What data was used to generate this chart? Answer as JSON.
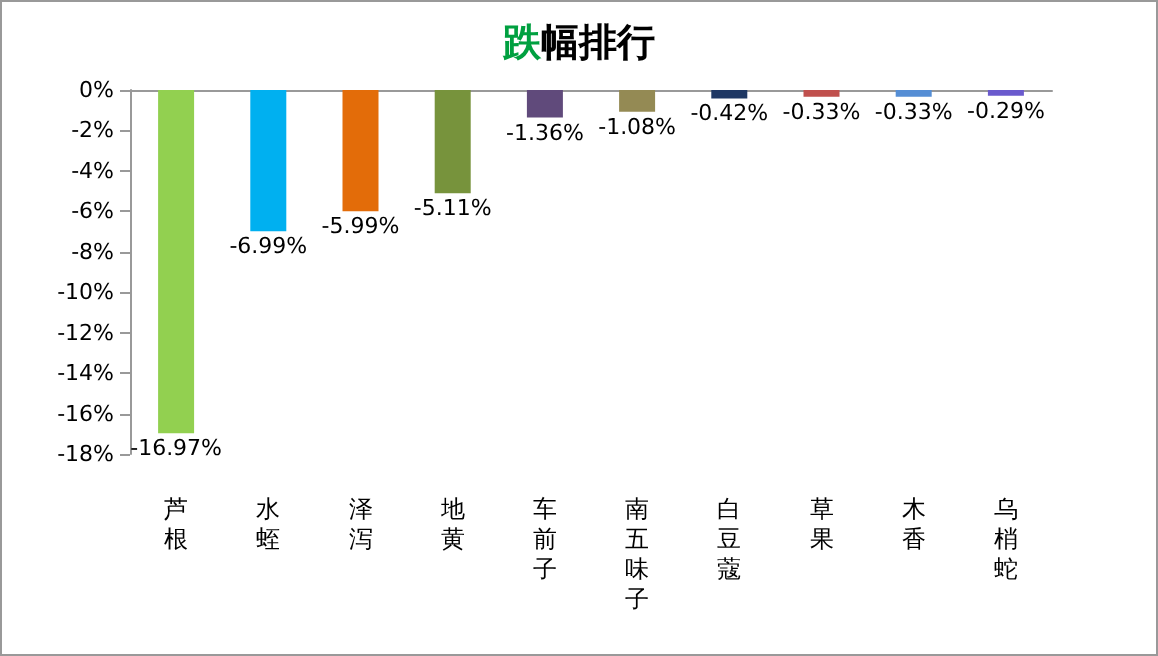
{
  "chart_data": {
    "type": "bar",
    "title": "跌幅排行",
    "categories": [
      "芦根",
      "水蛭",
      "泽泻",
      "地黄",
      "车前子",
      "南五味子",
      "白豆蔻",
      "草果",
      "木香",
      "乌梢蛇"
    ],
    "values": [
      -16.97,
      -6.99,
      -5.99,
      -5.11,
      -1.36,
      -1.08,
      -0.42,
      -0.33,
      -0.33,
      -0.29
    ],
    "colors": [
      "#92d050",
      "#00b0f0",
      "#e36c09",
      "#77933c",
      "#604a7b",
      "#948a54",
      "#1f3864",
      "#c0504d",
      "#558ed5",
      "#6a5acd"
    ],
    "value_labels": [
      "-16.97%",
      "-6.99%",
      "-5.99%",
      "-5.11%",
      "-1.36%",
      "-1.08%",
      "-0.42%",
      "-0.33%",
      "-0.33%",
      "-0.29%"
    ],
    "ylim": [
      -18,
      0
    ],
    "yticks": [
      {
        "value": 0,
        "label": "0%"
      },
      {
        "value": -2,
        "label": "-2%"
      },
      {
        "value": -4,
        "label": "-4%"
      },
      {
        "value": -6,
        "label": "-6%"
      },
      {
        "value": -8,
        "label": "-8%"
      },
      {
        "value": -10,
        "label": "-10%"
      },
      {
        "value": -12,
        "label": "-12%"
      },
      {
        "value": -14,
        "label": "-14%"
      },
      {
        "value": -16,
        "label": "-16%"
      },
      {
        "value": -18,
        "label": "-18%"
      }
    ],
    "grid": false
  }
}
